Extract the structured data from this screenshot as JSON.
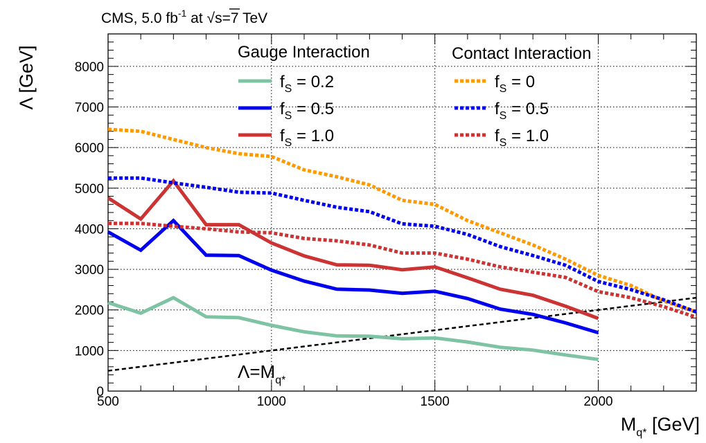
{
  "header": {
    "prefix": "CMS, 5.0 fb",
    "lumi_exp": "-1",
    "mid": " at ",
    "sqrt_glyph": "√",
    "energy": "s=7 TeV"
  },
  "chart_data": {
    "type": "line",
    "xlabel": {
      "main": "M",
      "sub": "q*",
      "unit": " [GeV]"
    },
    "ylabel": "Λ [GeV]",
    "xlim": [
      500,
      2300
    ],
    "ylim": [
      0,
      8800
    ],
    "x_ticks": [
      500,
      1000,
      1500,
      2000
    ],
    "y_ticks": [
      0,
      1000,
      2000,
      3000,
      4000,
      5000,
      6000,
      7000,
      8000
    ],
    "grid": true,
    "legend_titles": {
      "gauge": "Gauge Interaction",
      "contact": "Contact Interaction"
    },
    "series": [
      {
        "name": "f_S = 0.2",
        "group": "gauge",
        "color": "#7ec4a4",
        "dash": "solid",
        "x": [
          500,
          600,
          700,
          800,
          900,
          1000,
          1100,
          1200,
          1300,
          1400,
          1500,
          1600,
          1700,
          1800,
          1900,
          2000
        ],
        "y": [
          2180,
          1920,
          2300,
          1830,
          1810,
          1620,
          1460,
          1360,
          1350,
          1290,
          1310,
          1210,
          1080,
          1010,
          890,
          780
        ]
      },
      {
        "name": "f_S = 0.5",
        "group": "gauge",
        "color": "#0000ee",
        "dash": "solid",
        "x": [
          500,
          600,
          700,
          800,
          900,
          1000,
          1100,
          1200,
          1300,
          1400,
          1500,
          1600,
          1700,
          1800,
          1900,
          2000
        ],
        "y": [
          3920,
          3470,
          4200,
          3350,
          3340,
          2980,
          2710,
          2510,
          2490,
          2410,
          2460,
          2280,
          2020,
          1890,
          1680,
          1440
        ]
      },
      {
        "name": "f_S = 1.0",
        "group": "gauge",
        "color": "#cc3333",
        "dash": "solid",
        "x": [
          500,
          600,
          700,
          800,
          900,
          1000,
          1100,
          1200,
          1300,
          1400,
          1500,
          1600,
          1700,
          1800,
          1900,
          2000
        ],
        "y": [
          4760,
          4240,
          5180,
          4100,
          4100,
          3650,
          3330,
          3110,
          3100,
          2990,
          3060,
          2790,
          2510,
          2360,
          2090,
          1790
        ]
      },
      {
        "name": "f_S = 0",
        "group": "contact",
        "color": "#ff9900",
        "dash": "dotted",
        "x": [
          500,
          600,
          700,
          800,
          900,
          1000,
          1100,
          1200,
          1300,
          1400,
          1500,
          1600,
          1700,
          1800,
          1900,
          2000,
          2100,
          2200,
          2300
        ],
        "y": [
          6450,
          6400,
          6200,
          6000,
          5850,
          5780,
          5450,
          5280,
          5080,
          4700,
          4600,
          4200,
          3900,
          3600,
          3250,
          2850,
          2600,
          2220,
          1950
        ]
      },
      {
        "name": "f_S = 0.5",
        "group": "contact",
        "color": "#0000ee",
        "dash": "dotted",
        "x": [
          500,
          600,
          700,
          800,
          900,
          1000,
          1100,
          1200,
          1300,
          1400,
          1500,
          1600,
          1700,
          1800,
          1900,
          2000,
          2100,
          2200,
          2300
        ],
        "y": [
          5250,
          5250,
          5130,
          5020,
          4900,
          4880,
          4700,
          4530,
          4420,
          4120,
          4060,
          3860,
          3560,
          3340,
          3100,
          2700,
          2500,
          2250,
          1950
        ]
      },
      {
        "name": "f_S = 1.0",
        "group": "contact",
        "color": "#cc3333",
        "dash": "dotted",
        "x": [
          500,
          600,
          700,
          800,
          900,
          1000,
          1100,
          1200,
          1300,
          1400,
          1500,
          1600,
          1700,
          1800,
          1900,
          2000,
          2100,
          2200,
          2300
        ],
        "y": [
          4130,
          4130,
          4060,
          4000,
          3920,
          3900,
          3760,
          3700,
          3600,
          3400,
          3400,
          3250,
          3060,
          2930,
          2800,
          2450,
          2300,
          2080,
          1820
        ]
      }
    ],
    "reference_line": {
      "label": {
        "lambda": "Λ=M",
        "sub": "q*"
      },
      "x": [
        500,
        2300
      ],
      "y": [
        500,
        2300
      ]
    }
  }
}
